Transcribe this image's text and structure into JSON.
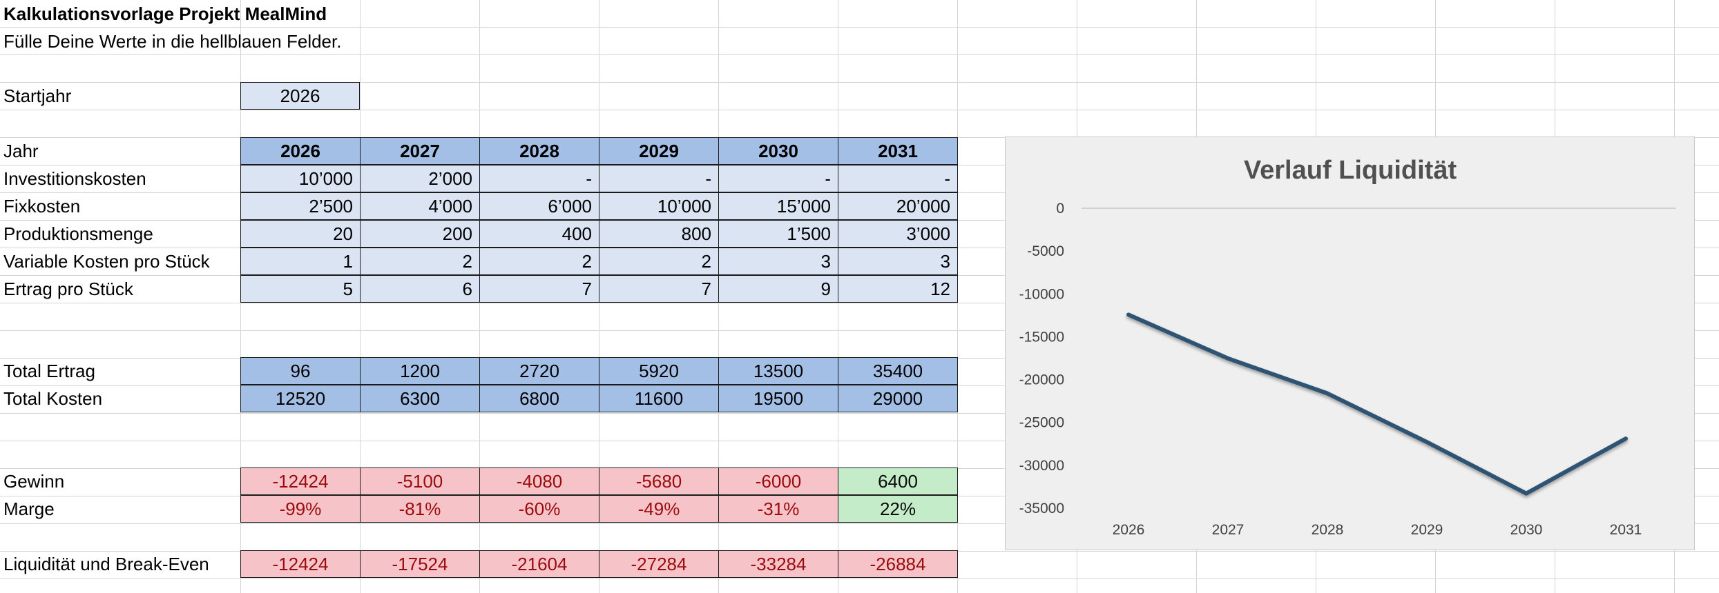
{
  "title": "Kalkulationsvorlage Projekt MealMind",
  "subtitle": "Fülle Deine Werte in die hellblauen Felder.",
  "startjahr": {
    "label": "Startjahr",
    "value": "2026"
  },
  "table": {
    "header_label": "Jahr",
    "years": [
      "2026",
      "2027",
      "2028",
      "2029",
      "2030",
      "2031"
    ],
    "rows": [
      {
        "label": "Investitionskosten",
        "values": [
          "10’000",
          "2’000",
          "-",
          "-",
          "-",
          "-"
        ]
      },
      {
        "label": "Fixkosten",
        "values": [
          "2’500",
          "4’000",
          "6’000",
          "10’000",
          "15’000",
          "20’000"
        ]
      },
      {
        "label": "Produktionsmenge",
        "values": [
          "20",
          "200",
          "400",
          "800",
          "1’500",
          "3’000"
        ]
      },
      {
        "label": "Variable Kosten pro Stück",
        "values": [
          "1",
          "2",
          "2",
          "2",
          "3",
          "3"
        ]
      },
      {
        "label": "Ertrag pro Stück",
        "values": [
          "5",
          "6",
          "7",
          "7",
          "9",
          "12"
        ]
      }
    ]
  },
  "totals": [
    {
      "label": "Total Ertrag",
      "values": [
        "96",
        "1200",
        "2720",
        "5920",
        "13500",
        "35400"
      ]
    },
    {
      "label": "Total Kosten",
      "values": [
        "12520",
        "6300",
        "6800",
        "11600",
        "19500",
        "29000"
      ]
    }
  ],
  "result_rows": [
    {
      "label": "Gewinn",
      "values": [
        "-12424",
        "-5100",
        "-4080",
        "-5680",
        "-6000",
        "6400"
      ]
    },
    {
      "label": "Marge",
      "values": [
        "-99%",
        "-81%",
        "-60%",
        "-49%",
        "-31%",
        "22%"
      ]
    }
  ],
  "liquidity": {
    "label": "Liquidität und Break-Even",
    "values": [
      "-12424",
      "-17524",
      "-21604",
      "-27284",
      "-33284",
      "-26884"
    ]
  },
  "colors": {
    "input": "#dae4f3",
    "header": "#a4bfe6",
    "negative_fill": "#f5c3c8",
    "negative_text": "#9c0b0b",
    "positive_fill": "#c4ecc8",
    "line": "#2e5373"
  },
  "chart_data": {
    "type": "line",
    "title": "Verlauf Liquidität",
    "categories": [
      "2026",
      "2027",
      "2028",
      "2029",
      "2030",
      "2031"
    ],
    "series": [
      {
        "values": [
          -12424,
          -17524,
          -21604,
          -27284,
          -33284,
          -26884
        ]
      }
    ],
    "yticks": [
      0,
      -5000,
      -10000,
      -15000,
      -20000,
      -25000,
      -30000,
      -35000
    ],
    "ylim": [
      -35000,
      0
    ],
    "grid": "only zero line"
  }
}
